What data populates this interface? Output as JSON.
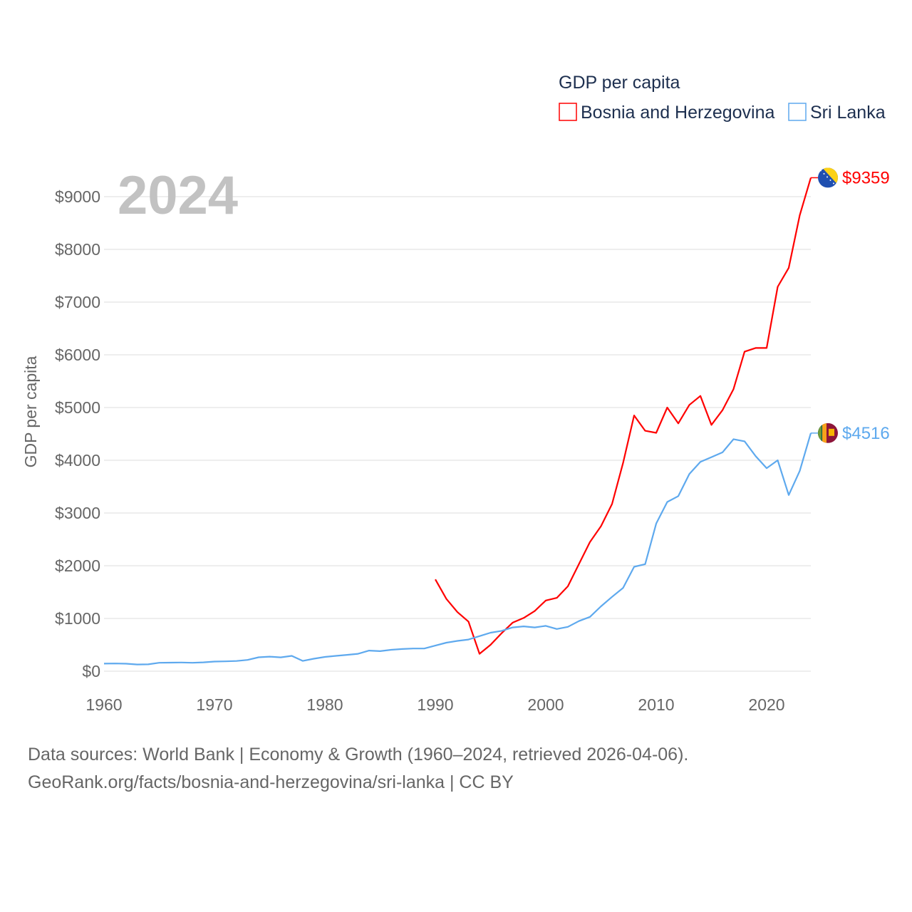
{
  "chart_data": {
    "type": "line",
    "title": "GDP per capita",
    "ylabel": "GDP per capita",
    "xlabel": "",
    "year_label": "2024",
    "xlim": [
      1960,
      2024
    ],
    "ylim": [
      0,
      9000
    ],
    "x_ticks": [
      "1960",
      "1970",
      "1980",
      "1990",
      "2000",
      "2010",
      "2020"
    ],
    "x_tick_values": [
      1960,
      1970,
      1980,
      1990,
      2000,
      2010,
      2020
    ],
    "y_ticks": [
      "$0",
      "$1000",
      "$2000",
      "$3000",
      "$4000",
      "$5000",
      "$6000",
      "$7000",
      "$8000",
      "$9000"
    ],
    "y_tick_values": [
      0,
      1000,
      2000,
      3000,
      4000,
      5000,
      6000,
      7000,
      8000,
      9000
    ],
    "grid": true,
    "legend_position": "top-right",
    "series": [
      {
        "name": "Bosnia and Herzegovina",
        "color": "#ff0000",
        "end_label": "$9359",
        "flag_icon": "bosnia-flag-icon",
        "x_start": 1990,
        "values": [
          1740,
          1370,
          1120,
          940,
          330,
          500,
          720,
          920,
          1010,
          1140,
          1340,
          1390,
          1610,
          2030,
          2450,
          2750,
          3170,
          3950,
          4850,
          4560,
          4520,
          5000,
          4700,
          5050,
          5220,
          4670,
          4950,
          5350,
          6060,
          6130,
          6130,
          7290,
          7650,
          8650,
          9359
        ]
      },
      {
        "name": "Sri Lanka",
        "color": "#5ea9ee",
        "end_label": "$4516",
        "flag_icon": "sri-lanka-flag-icon",
        "x_start": 1960,
        "values": [
          143,
          146,
          142,
          127,
          130,
          160,
          162,
          165,
          160,
          167,
          183,
          186,
          193,
          214,
          264,
          276,
          262,
          291,
          195,
          236,
          270,
          290,
          310,
          330,
          390,
          380,
          405,
          420,
          430,
          430,
          485,
          540,
          575,
          600,
          665,
          730,
          765,
          830,
          850,
          830,
          860,
          800,
          840,
          950,
          1030,
          1230,
          1410,
          1580,
          1980,
          2030,
          2800,
          3210,
          3320,
          3740,
          3970,
          4060,
          4150,
          4400,
          4360,
          4080,
          3850,
          4000,
          3340,
          3800,
          4516
        ]
      }
    ]
  },
  "footer": {
    "line1": "Data sources: World Bank | Economy & Growth (1960–2024, retrieved 2026-04-06).",
    "line2": "GeoRank.org/facts/bosnia-and-herzegovina/sri-lanka | CC BY"
  }
}
